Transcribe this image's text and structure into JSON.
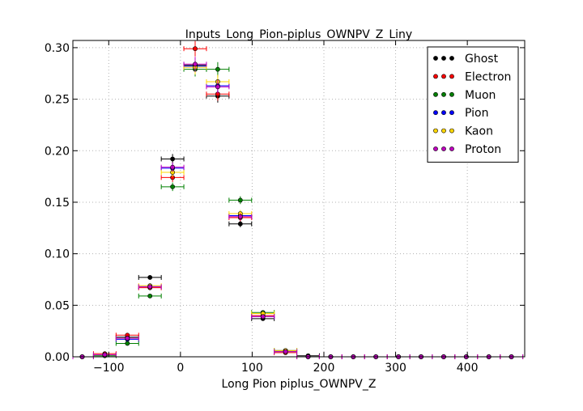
{
  "chart_data": {
    "type": "scatter",
    "title": "Inputs_Long_Pion-piplus_OWNPV_Z_Liny",
    "xlabel": "Long Pion piplus_OWNPV_Z",
    "ylabel": "",
    "xlim": [
      -150,
      480
    ],
    "ylim": [
      0,
      0.307
    ],
    "x_ticks": [
      -100,
      0,
      100,
      200,
      300,
      400
    ],
    "x_tick_labels": [
      "−100",
      "0",
      "100",
      "200",
      "300",
      "400"
    ],
    "y_ticks": [
      0.0,
      0.05,
      0.1,
      0.15,
      0.2,
      0.25,
      0.3
    ],
    "y_tick_labels": [
      "0.00",
      "0.05",
      "0.10",
      "0.15",
      "0.20",
      "0.25",
      "0.30"
    ],
    "grid": true,
    "legend_position": "top-right",
    "bin_half_width": 15.75,
    "x": [
      -137,
      -105.5,
      -74,
      -42.5,
      -11,
      20.5,
      52,
      83.5,
      115,
      146.5,
      178,
      209.5,
      241,
      272.5,
      304,
      335.5,
      367,
      398.5,
      430,
      461.5
    ],
    "series": [
      {
        "name": "Ghost",
        "color": "#000000",
        "values": [
          0.0,
          0.002,
          0.019,
          0.077,
          0.192,
          0.283,
          0.253,
          0.129,
          0.037,
          0.006,
          0.001,
          0.0,
          0.0,
          0.0,
          0.0,
          0.0,
          0.0,
          0.0,
          0.0,
          0.0
        ]
      },
      {
        "name": "Electron",
        "color": "#ff0000",
        "values": [
          0.0,
          0.003,
          0.021,
          0.067,
          0.174,
          0.299,
          0.255,
          0.135,
          0.04,
          0.004,
          0.0,
          0.0,
          0.0,
          0.0,
          0.0,
          0.0,
          0.0,
          0.0,
          0.0,
          0.0
        ]
      },
      {
        "name": "Muon",
        "color": "#008000",
        "values": [
          0.0,
          0.001,
          0.013,
          0.059,
          0.165,
          0.279,
          0.279,
          0.152,
          0.043,
          0.006,
          0.0,
          0.0,
          0.0,
          0.0,
          0.0,
          0.0,
          0.0,
          0.0,
          0.0,
          0.0
        ]
      },
      {
        "name": "Pion",
        "color": "#0000ff",
        "values": [
          0.0,
          0.002,
          0.017,
          0.068,
          0.183,
          0.282,
          0.263,
          0.137,
          0.039,
          0.005,
          0.0,
          0.0,
          0.0,
          0.0,
          0.0,
          0.0,
          0.0,
          0.0,
          0.0,
          0.0
        ]
      },
      {
        "name": "Kaon",
        "color": "#ffd700",
        "values": [
          0.0,
          0.002,
          0.018,
          0.069,
          0.179,
          0.281,
          0.267,
          0.139,
          0.042,
          0.006,
          0.0,
          0.0,
          0.0,
          0.0,
          0.0,
          0.0,
          0.0,
          0.0,
          0.0,
          0.0
        ]
      },
      {
        "name": "Proton",
        "color": "#bf00bf",
        "values": [
          0.0,
          0.002,
          0.018,
          0.068,
          0.184,
          0.284,
          0.262,
          0.136,
          0.039,
          0.005,
          0.0,
          0.0,
          0.0,
          0.0,
          0.0,
          0.0,
          0.0,
          0.0,
          0.0,
          0.0
        ]
      }
    ]
  }
}
